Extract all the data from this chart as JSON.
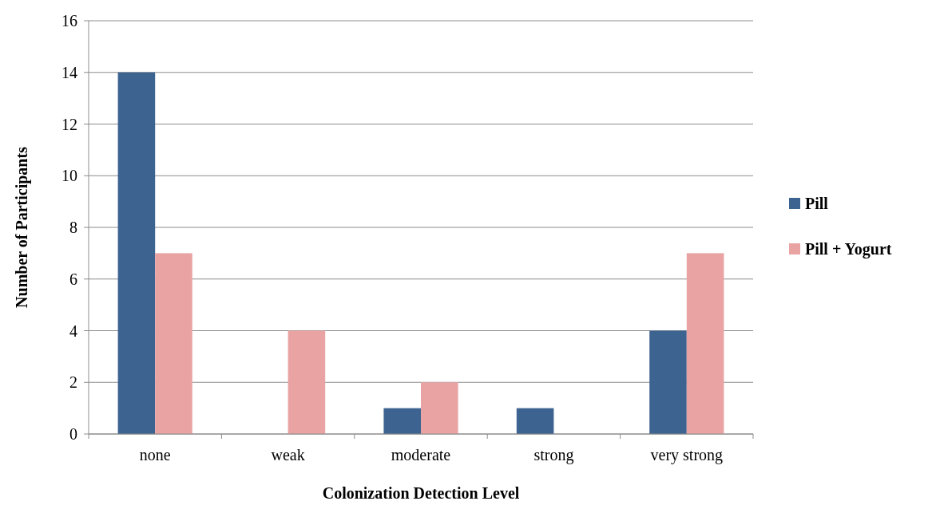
{
  "chart_data": {
    "type": "bar",
    "xlabel": "Colonization Detection Level",
    "ylabel": "Number of Participants",
    "categories": [
      "none",
      "weak",
      "moderate",
      "strong",
      "very strong"
    ],
    "series": [
      {
        "name": "Pill",
        "color": "#3d6491",
        "values": [
          14,
          0,
          1,
          1,
          4
        ]
      },
      {
        "name": "Pill + Yogurt",
        "color": "#e9a3a3",
        "values": [
          7,
          4,
          2,
          0,
          7
        ]
      }
    ],
    "ylim": [
      0,
      16
    ],
    "yticks": [
      0,
      2,
      4,
      6,
      8,
      10,
      12,
      14,
      16
    ],
    "grid": "y",
    "legend": "right"
  }
}
